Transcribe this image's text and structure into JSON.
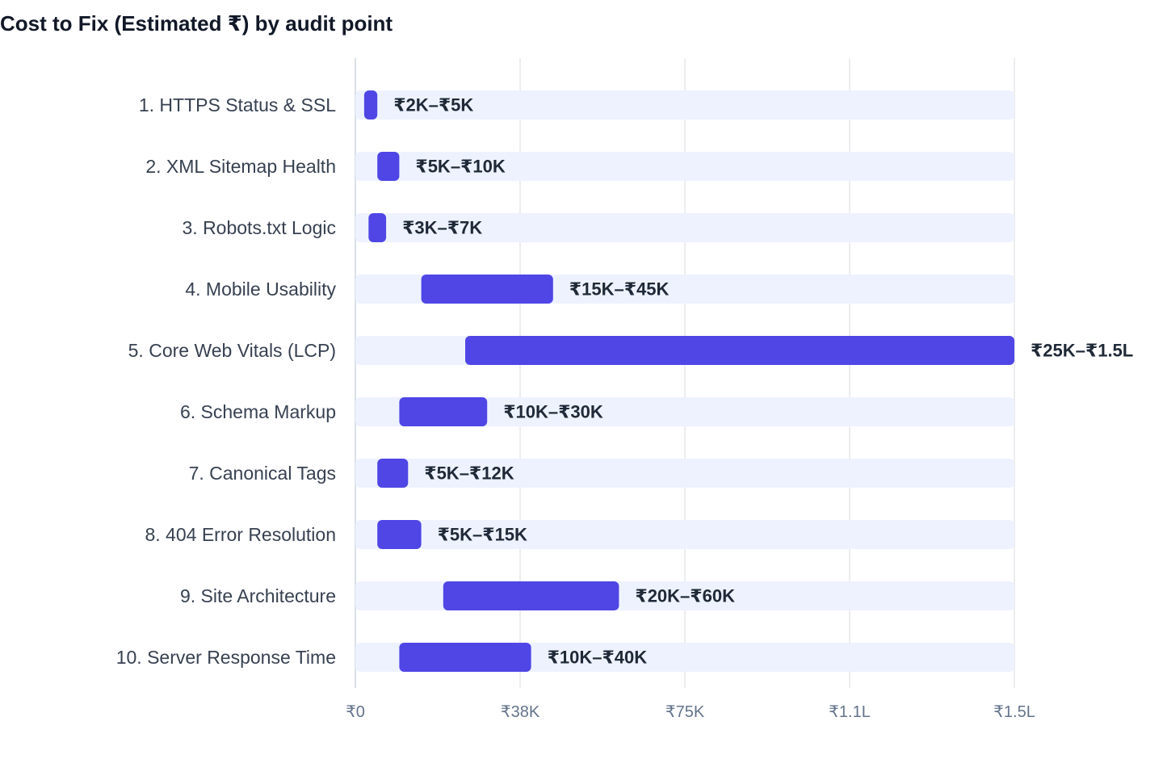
{
  "chart_data": {
    "type": "bar",
    "orientation": "horizontal",
    "subtype": "range",
    "title": "Cost to Fix (Estimated ₹) by audit point",
    "xlabel": "",
    "ylabel": "",
    "xlim": [
      0,
      150000
    ],
    "x_ticks": [
      {
        "value": 0,
        "label": "₹0"
      },
      {
        "value": 37500,
        "label": "₹38K"
      },
      {
        "value": 75000,
        "label": "₹75K"
      },
      {
        "value": 112500,
        "label": "₹1.1L"
      },
      {
        "value": 150000,
        "label": "₹1.5L"
      }
    ],
    "grid": "vertical",
    "bar_color": "#4f46e5",
    "track_color": "#eef2ff",
    "categories": [
      "1. HTTPS Status & SSL",
      "2. XML Sitemap Health",
      "3. Robots.txt Logic",
      "4. Mobile Usability",
      "5. Core Web Vitals (LCP)",
      "6. Schema Markup",
      "7. Canonical Tags",
      "8. 404 Error Resolution",
      "9. Site Architecture",
      "10. Server Response Time"
    ],
    "ranges": [
      {
        "low": 2000,
        "high": 5000,
        "label": "₹2K–₹5K"
      },
      {
        "low": 5000,
        "high": 10000,
        "label": "₹5K–₹10K"
      },
      {
        "low": 3000,
        "high": 7000,
        "label": "₹3K–₹7K"
      },
      {
        "low": 15000,
        "high": 45000,
        "label": "₹15K–₹45K"
      },
      {
        "low": 25000,
        "high": 150000,
        "label": "₹25K–₹1.5L"
      },
      {
        "low": 10000,
        "high": 30000,
        "label": "₹10K–₹30K"
      },
      {
        "low": 5000,
        "high": 12000,
        "label": "₹5K–₹12K"
      },
      {
        "low": 5000,
        "high": 15000,
        "label": "₹5K–₹15K"
      },
      {
        "low": 20000,
        "high": 60000,
        "label": "₹20K–₹60K"
      },
      {
        "low": 10000,
        "high": 40000,
        "label": "₹10K–₹40K"
      }
    ]
  }
}
